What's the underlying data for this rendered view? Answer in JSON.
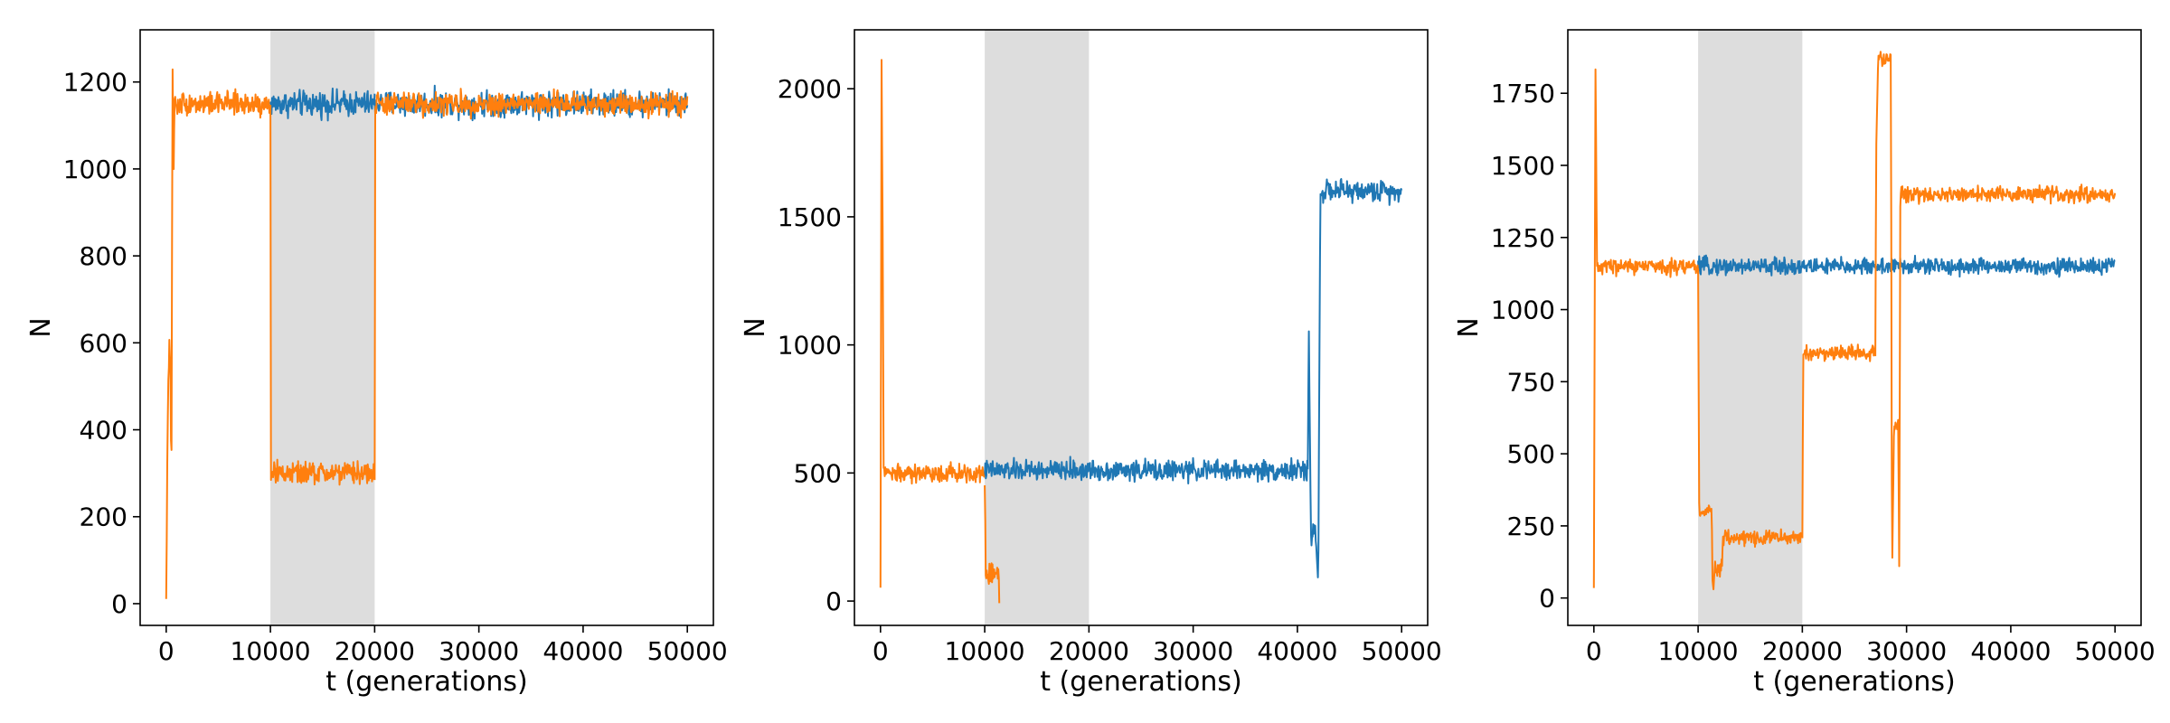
{
  "chart_data": [
    {
      "type": "line",
      "xlabel": "t (generations)",
      "ylabel": "N",
      "xlim": [
        -2500,
        52500
      ],
      "ylim": [
        -50,
        1320
      ],
      "xticks": [
        0,
        10000,
        20000,
        30000,
        40000,
        50000
      ],
      "yticks": [
        0,
        200,
        400,
        600,
        800,
        1000,
        1200
      ],
      "shaded_region": [
        10000,
        20000
      ],
      "shade_color": "#dddddd",
      "series": [
        {
          "color": "#1f77b4",
          "noise": 22,
          "segments": [
            [
              [
                10000,
                1150
              ],
              [
                20000,
                1150
              ]
            ],
            [
              [
                20000,
                1150
              ],
              [
                50000,
                1150
              ]
            ]
          ]
        },
        {
          "color": "#ff7f0e",
          "noise": 20,
          "segments": [
            [
              [
                0,
                10
              ],
              [
                100,
                300
              ],
              [
                200,
                520
              ],
              [
                300,
                600
              ],
              [
                400,
                560
              ],
              [
                500,
                250
              ],
              [
                600,
                1250
              ],
              [
                700,
                1000
              ],
              [
                800,
                1150
              ],
              [
                10000,
                1150
              ]
            ],
            [
              [
                10000,
                1150
              ],
              [
                10050,
                300
              ],
              [
                20000,
                300
              ]
            ],
            [
              [
                20000,
                300
              ],
              [
                20050,
                1150
              ],
              [
                50000,
                1150
              ]
            ]
          ]
        }
      ]
    },
    {
      "type": "line",
      "xlabel": "t (generations)",
      "ylabel": "N",
      "xlim": [
        -2500,
        52500
      ],
      "ylim": [
        -95,
        2230
      ],
      "xticks": [
        0,
        10000,
        20000,
        30000,
        40000,
        50000
      ],
      "yticks": [
        0,
        500,
        1000,
        1500,
        2000
      ],
      "shaded_region": [
        10000,
        20000
      ],
      "shade_color": "#dddddd",
      "series": [
        {
          "color": "#1f77b4",
          "noise": 30,
          "segments": [
            [
              [
                10000,
                510
              ],
              [
                41000,
                510
              ]
            ],
            [
              [
                41000,
                510
              ],
              [
                41100,
                1050
              ],
              [
                41300,
                250
              ],
              [
                41700,
                300
              ],
              [
                42000,
                50
              ],
              [
                42200,
                1600
              ],
              [
                50000,
                1600
              ]
            ]
          ]
        },
        {
          "color": "#ff7f0e",
          "noise": 30,
          "segments": [
            [
              [
                0,
                60
              ],
              [
                100,
                2130
              ],
              [
                200,
                1500
              ],
              [
                300,
                500
              ],
              [
                10000,
                500
              ]
            ],
            [
              [
                10000,
                500
              ],
              [
                10100,
                110
              ],
              [
                11300,
                110
              ],
              [
                11400,
                0
              ]
            ]
          ]
        }
      ]
    },
    {
      "type": "line",
      "xlabel": "t (generations)",
      "ylabel": "N",
      "xlim": [
        -2500,
        52500
      ],
      "ylim": [
        -95,
        1970
      ],
      "xticks": [
        0,
        10000,
        20000,
        30000,
        40000,
        50000
      ],
      "yticks": [
        0,
        250,
        500,
        750,
        1000,
        1250,
        1500,
        1750
      ],
      "shaded_region": [
        10000,
        20000
      ],
      "shade_color": "#dddddd",
      "series": [
        {
          "color": "#1f77b4",
          "noise": 22,
          "segments": [
            [
              [
                10000,
                1150
              ],
              [
                50000,
                1150
              ]
            ]
          ]
        },
        {
          "color": "#ff7f0e",
          "noise": 20,
          "segments": [
            [
              [
                0,
                20
              ],
              [
                150,
                1860
              ],
              [
                300,
                1150
              ],
              [
                10000,
                1150
              ]
            ],
            [
              [
                10000,
                1150
              ],
              [
                10100,
                300
              ],
              [
                11300,
                300
              ],
              [
                11400,
                10
              ],
              [
                11600,
                100
              ],
              [
                12300,
                100
              ],
              [
                12400,
                210
              ],
              [
                20000,
                210
              ]
            ],
            [
              [
                20000,
                210
              ],
              [
                20100,
                850
              ],
              [
                27000,
                850
              ]
            ],
            [
              [
                27000,
                850
              ],
              [
                27100,
                1600
              ],
              [
                27300,
                1870
              ],
              [
                28500,
                1870
              ],
              [
                28600,
                50
              ],
              [
                28800,
                600
              ],
              [
                29200,
                600
              ],
              [
                29300,
                90
              ],
              [
                29400,
                1400
              ],
              [
                50000,
                1400
              ]
            ]
          ]
        }
      ]
    }
  ]
}
